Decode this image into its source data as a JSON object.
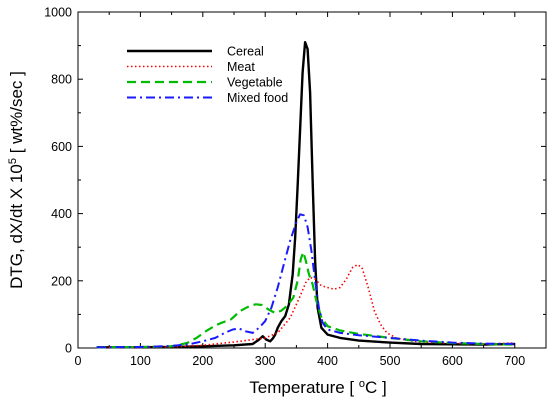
{
  "chart_data": {
    "type": "line",
    "xlabel_main": "Temperature [ ",
    "xlabel_sup": "o",
    "xlabel_tail": "C ]",
    "ylabel_main": "DTG, dX/dt X 10",
    "ylabel_sup": "5",
    "ylabel_tail": " [ wt%/sec ]",
    "xlim": [
      0,
      750
    ],
    "ylim": [
      0,
      1000
    ],
    "x_ticks": [
      0,
      100,
      200,
      300,
      400,
      500,
      600,
      700
    ],
    "y_ticks": [
      0,
      200,
      400,
      600,
      800,
      1000
    ],
    "grid": false,
    "legend_position": "top-left",
    "series": [
      {
        "name": "Cereal",
        "color": "#000000",
        "style": "solid",
        "points": [
          [
            30,
            2
          ],
          [
            100,
            2
          ],
          [
            150,
            3
          ],
          [
            200,
            5
          ],
          [
            250,
            8
          ],
          [
            280,
            12
          ],
          [
            290,
            25
          ],
          [
            296,
            35
          ],
          [
            302,
            25
          ],
          [
            308,
            20
          ],
          [
            312,
            28
          ],
          [
            316,
            40
          ],
          [
            320,
            60
          ],
          [
            326,
            80
          ],
          [
            332,
            95
          ],
          [
            338,
            130
          ],
          [
            344,
            220
          ],
          [
            348,
            330
          ],
          [
            352,
            480
          ],
          [
            356,
            650
          ],
          [
            360,
            820
          ],
          [
            364,
            910
          ],
          [
            368,
            890
          ],
          [
            372,
            760
          ],
          [
            376,
            500
          ],
          [
            380,
            260
          ],
          [
            384,
            120
          ],
          [
            390,
            60
          ],
          [
            400,
            40
          ],
          [
            420,
            30
          ],
          [
            450,
            22
          ],
          [
            500,
            16
          ],
          [
            550,
            12
          ],
          [
            600,
            11
          ],
          [
            650,
            10
          ],
          [
            700,
            12
          ]
        ]
      },
      {
        "name": "Meat",
        "color": "#ff0000",
        "style": "dotted",
        "points": [
          [
            30,
            2
          ],
          [
            100,
            2
          ],
          [
            150,
            3
          ],
          [
            200,
            8
          ],
          [
            250,
            18
          ],
          [
            280,
            25
          ],
          [
            300,
            30
          ],
          [
            320,
            45
          ],
          [
            340,
            90
          ],
          [
            355,
            150
          ],
          [
            365,
            195
          ],
          [
            372,
            210
          ],
          [
            380,
            205
          ],
          [
            390,
            185
          ],
          [
            400,
            180
          ],
          [
            410,
            175
          ],
          [
            420,
            180
          ],
          [
            430,
            205
          ],
          [
            440,
            240
          ],
          [
            448,
            248
          ],
          [
            455,
            240
          ],
          [
            465,
            180
          ],
          [
            475,
            110
          ],
          [
            485,
            70
          ],
          [
            495,
            45
          ],
          [
            510,
            30
          ],
          [
            530,
            22
          ],
          [
            560,
            17
          ],
          [
            600,
            14
          ],
          [
            650,
            12
          ],
          [
            700,
            15
          ]
        ]
      },
      {
        "name": "Vegetable",
        "color": "#00bb00",
        "style": "dashed",
        "points": [
          [
            30,
            2
          ],
          [
            100,
            3
          ],
          [
            150,
            5
          ],
          [
            175,
            15
          ],
          [
            190,
            30
          ],
          [
            205,
            50
          ],
          [
            218,
            65
          ],
          [
            230,
            75
          ],
          [
            245,
            85
          ],
          [
            260,
            110
          ],
          [
            275,
            125
          ],
          [
            285,
            130
          ],
          [
            295,
            128
          ],
          [
            305,
            115
          ],
          [
            315,
            105
          ],
          [
            325,
            110
          ],
          [
            335,
            125
          ],
          [
            345,
            150
          ],
          [
            352,
            200
          ],
          [
            357,
            265
          ],
          [
            361,
            285
          ],
          [
            365,
            260
          ],
          [
            370,
            220
          ],
          [
            376,
            190
          ],
          [
            382,
            140
          ],
          [
            390,
            90
          ],
          [
            400,
            65
          ],
          [
            420,
            52
          ],
          [
            450,
            42
          ],
          [
            500,
            30
          ],
          [
            550,
            20
          ],
          [
            600,
            15
          ],
          [
            650,
            12
          ],
          [
            700,
            10
          ]
        ]
      },
      {
        "name": "Mixed food",
        "color": "#1a1aff",
        "style": "dashdot",
        "points": [
          [
            30,
            2
          ],
          [
            100,
            3
          ],
          [
            150,
            6
          ],
          [
            180,
            12
          ],
          [
            200,
            20
          ],
          [
            220,
            30
          ],
          [
            235,
            45
          ],
          [
            248,
            55
          ],
          [
            258,
            58
          ],
          [
            268,
            50
          ],
          [
            280,
            45
          ],
          [
            290,
            60
          ],
          [
            300,
            80
          ],
          [
            310,
            120
          ],
          [
            320,
            180
          ],
          [
            330,
            250
          ],
          [
            340,
            320
          ],
          [
            350,
            375
          ],
          [
            356,
            398
          ],
          [
            362,
            395
          ],
          [
            368,
            360
          ],
          [
            374,
            290
          ],
          [
            380,
            200
          ],
          [
            386,
            120
          ],
          [
            392,
            75
          ],
          [
            400,
            55
          ],
          [
            420,
            45
          ],
          [
            450,
            38
          ],
          [
            500,
            30
          ],
          [
            550,
            22
          ],
          [
            600,
            16
          ],
          [
            650,
            13
          ],
          [
            700,
            12
          ]
        ]
      }
    ]
  }
}
